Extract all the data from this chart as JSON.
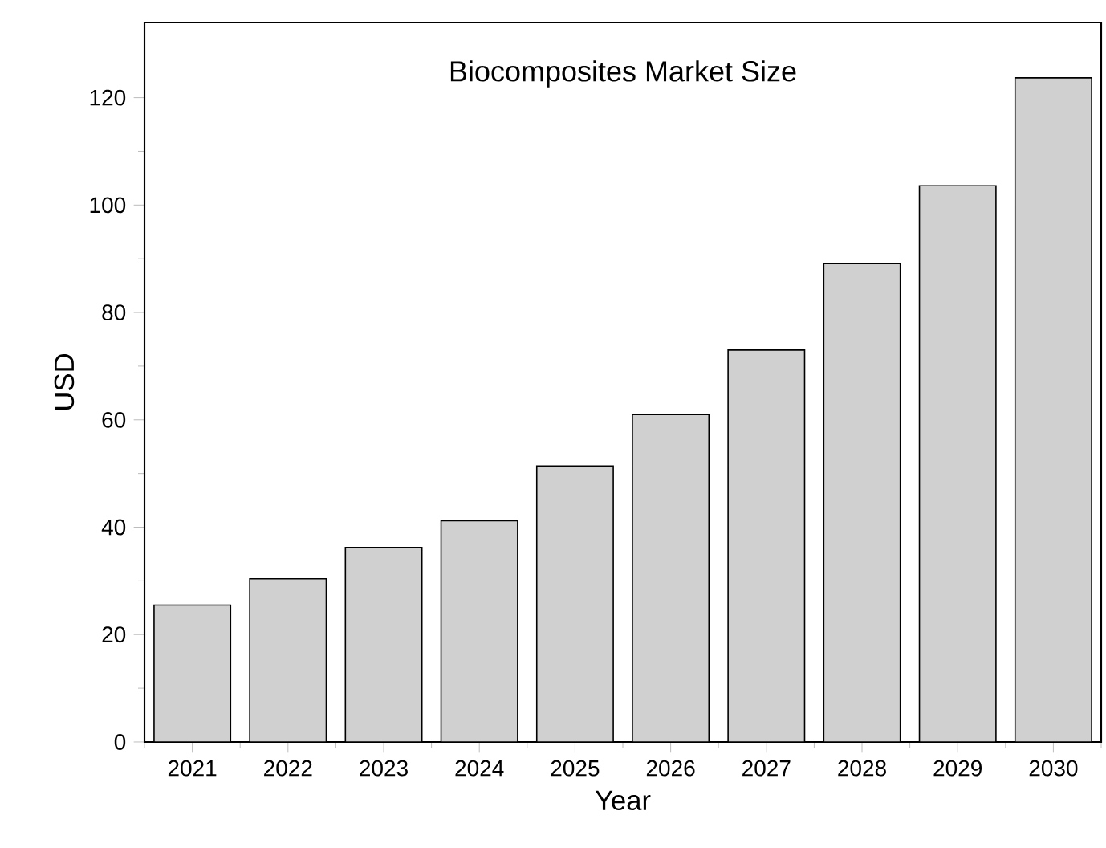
{
  "chart_data": {
    "type": "bar",
    "title": "Biocomposites Market Size",
    "xlabel": "Year",
    "ylabel": "USD",
    "categories": [
      "2021",
      "2022",
      "2023",
      "2024",
      "2025",
      "2026",
      "2027",
      "2028",
      "2029",
      "2030"
    ],
    "values": [
      25.5,
      30.4,
      36.2,
      41.2,
      51.4,
      61,
      73,
      89.1,
      103.6,
      123.7
    ],
    "color": "#d0d0d0",
    "ylim": [
      0,
      134
    ],
    "yticks": [
      0,
      20,
      40,
      60,
      80,
      100,
      120
    ]
  }
}
